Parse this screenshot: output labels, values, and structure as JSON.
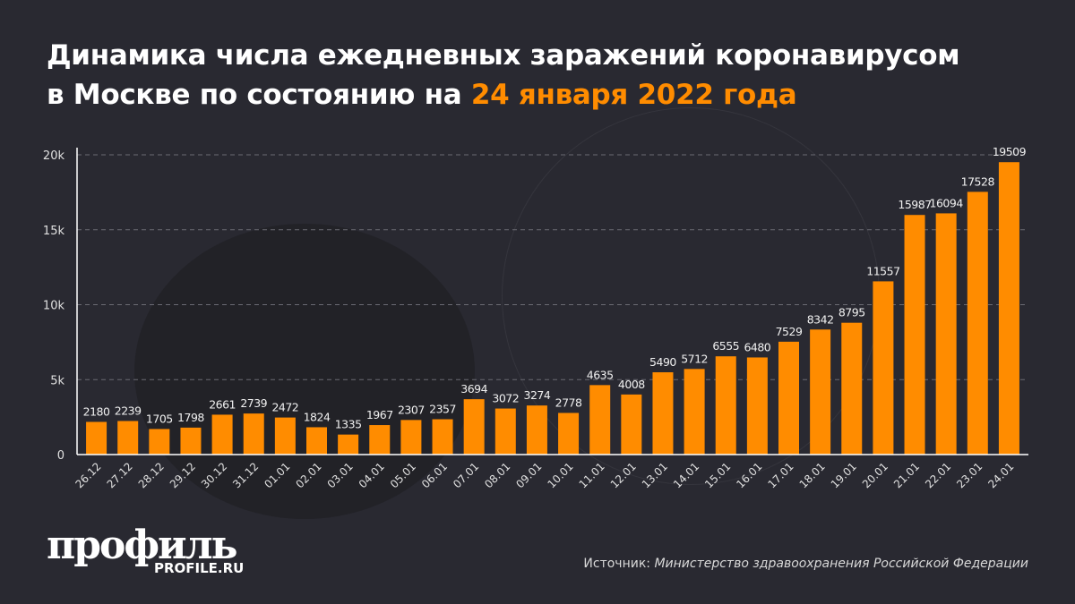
{
  "title": {
    "line1": "Динамика числа ежедневных заражений коронавирусом",
    "line2_prefix": "в Москве по состоянию на ",
    "line2_highlight": "24 января 2022 года"
  },
  "colors": {
    "bar": "#ff8c00",
    "background": "#292931",
    "highlight": "#ff8c00"
  },
  "chart_data": {
    "type": "bar",
    "categories": [
      "26.12",
      "27.12",
      "28.12",
      "29.12",
      "30.12",
      "31.12",
      "01.01",
      "02.01",
      "03.01",
      "04.01",
      "05.01",
      "06.01",
      "07.01",
      "08.01",
      "09.01",
      "10.01",
      "11.01",
      "12.01",
      "13.01",
      "14.01",
      "15.01",
      "16.01",
      "17.01",
      "18.01",
      "19.01",
      "20.01",
      "21.01",
      "22.01",
      "23.01",
      "24.01"
    ],
    "values": [
      2180,
      2239,
      1705,
      1798,
      2661,
      2739,
      2472,
      1824,
      1335,
      1967,
      2307,
      2357,
      3694,
      3072,
      3274,
      2778,
      4635,
      4008,
      5490,
      5712,
      6555,
      6480,
      7529,
      8342,
      8795,
      11557,
      15987,
      16094,
      17528,
      19509
    ],
    "yticks": [
      0,
      5000,
      10000,
      15000,
      20000
    ],
    "ytick_labels": [
      "0",
      "5k",
      "10k",
      "15k",
      "20k"
    ],
    "ylim": [
      0,
      20000
    ],
    "grid": "horizontal dashed",
    "data_labels": true
  },
  "logo": {
    "main": "профиль",
    "sub": "PROFILE.RU"
  },
  "source": {
    "label": "Источник: ",
    "text": "Министерство здравоохранения Российской Федерации"
  }
}
